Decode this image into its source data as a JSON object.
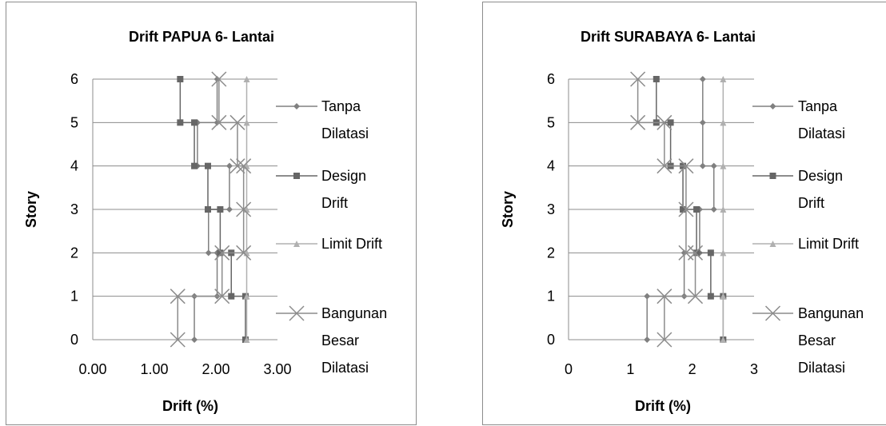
{
  "chart_data": [
    {
      "type": "line",
      "title": "Drift PAPUA 6- Lantai",
      "xlabel": "Drift (%)",
      "ylabel": "Story",
      "xlim": [
        0,
        3
      ],
      "ylim": [
        0,
        6
      ],
      "x_ticks": [
        "0.00",
        "1.00",
        "2.00",
        "3.00"
      ],
      "y_ticks": [
        "0",
        "1",
        "2",
        "3",
        "4",
        "5",
        "6"
      ],
      "grid": "horizontal",
      "legend_position": "right",
      "series": [
        {
          "name": "Tanpa Dilatasi",
          "color": "#808080",
          "marker": "diamond",
          "points": [
            [
              1.65,
              0
            ],
            [
              1.65,
              1
            ],
            [
              2.02,
              1
            ],
            [
              2.02,
              2
            ],
            [
              1.88,
              2
            ],
            [
              1.88,
              3
            ],
            [
              2.22,
              3
            ],
            [
              2.22,
              4
            ],
            [
              1.7,
              4
            ],
            [
              1.7,
              5
            ],
            [
              2.02,
              5
            ],
            [
              2.02,
              6
            ]
          ]
        },
        {
          "name": "Design Drift",
          "color": "#666666",
          "marker": "square",
          "points": [
            [
              2.48,
              0
            ],
            [
              2.48,
              1
            ],
            [
              2.25,
              1
            ],
            [
              2.25,
              2
            ],
            [
              2.07,
              2
            ],
            [
              2.07,
              3
            ],
            [
              1.87,
              3
            ],
            [
              1.87,
              4
            ],
            [
              1.65,
              4
            ],
            [
              1.65,
              5
            ],
            [
              1.42,
              5
            ],
            [
              1.42,
              6
            ]
          ]
        },
        {
          "name": "Limit Drift",
          "color": "#b0b0b0",
          "marker": "triangle",
          "points": [
            [
              2.5,
              0
            ],
            [
              2.5,
              1
            ],
            [
              2.5,
              2
            ],
            [
              2.5,
              3
            ],
            [
              2.5,
              4
            ],
            [
              2.5,
              5
            ],
            [
              2.5,
              6
            ]
          ]
        },
        {
          "name": "Bangunan Besar Dilatasi",
          "color": "#8c8c8c",
          "marker": "x",
          "points": [
            [
              1.38,
              0
            ],
            [
              1.38,
              1
            ],
            [
              2.1,
              1
            ],
            [
              2.1,
              2
            ],
            [
              2.45,
              2
            ],
            [
              2.45,
              3
            ],
            [
              2.45,
              4
            ],
            [
              2.35,
              4
            ],
            [
              2.35,
              5
            ],
            [
              2.05,
              5
            ],
            [
              2.05,
              6
            ]
          ]
        }
      ]
    },
    {
      "type": "line",
      "title": "Drift SURABAYA 6- Lantai",
      "xlabel": "Drift (%)",
      "ylabel": "Story",
      "xlim": [
        0,
        3
      ],
      "ylim": [
        0,
        6
      ],
      "x_ticks": [
        "0",
        "1",
        "2",
        "3"
      ],
      "y_ticks": [
        "0",
        "1",
        "2",
        "3",
        "4",
        "5",
        "6"
      ],
      "grid": "horizontal",
      "legend_position": "right",
      "series": [
        {
          "name": "Tanpa Dilatasi",
          "color": "#808080",
          "marker": "diamond",
          "points": [
            [
              1.27,
              0
            ],
            [
              1.27,
              1
            ],
            [
              1.87,
              1
            ],
            [
              1.87,
              2
            ],
            [
              2.12,
              2
            ],
            [
              2.12,
              3
            ],
            [
              2.35,
              3
            ],
            [
              2.35,
              4
            ],
            [
              2.17,
              4
            ],
            [
              2.17,
              5
            ],
            [
              2.17,
              6
            ]
          ]
        },
        {
          "name": "Design Drift",
          "color": "#666666",
          "marker": "square",
          "points": [
            [
              2.5,
              0
            ],
            [
              2.5,
              1
            ],
            [
              2.3,
              1
            ],
            [
              2.3,
              2
            ],
            [
              2.07,
              2
            ],
            [
              2.07,
              3
            ],
            [
              1.85,
              3
            ],
            [
              1.85,
              4
            ],
            [
              1.65,
              4
            ],
            [
              1.65,
              5
            ],
            [
              1.42,
              5
            ],
            [
              1.42,
              6
            ]
          ]
        },
        {
          "name": "Limit Drift",
          "color": "#b0b0b0",
          "marker": "triangle",
          "points": [
            [
              2.5,
              0
            ],
            [
              2.5,
              1
            ],
            [
              2.5,
              2
            ],
            [
              2.5,
              3
            ],
            [
              2.5,
              4
            ],
            [
              2.5,
              5
            ],
            [
              2.5,
              6
            ]
          ]
        },
        {
          "name": "Bangunan Besar Dilatasi",
          "color": "#8c8c8c",
          "marker": "x",
          "points": [
            [
              1.55,
              0
            ],
            [
              1.55,
              1
            ],
            [
              2.05,
              1
            ],
            [
              2.05,
              2
            ],
            [
              1.9,
              2
            ],
            [
              1.9,
              3
            ],
            [
              1.9,
              4
            ],
            [
              1.55,
              4
            ],
            [
              1.55,
              5
            ],
            [
              1.12,
              5
            ],
            [
              1.12,
              6
            ]
          ]
        }
      ]
    }
  ],
  "legend": {
    "left": [
      [
        "Tanpa",
        "Dilatasi"
      ],
      [
        "Design",
        "Drift"
      ],
      [
        "Limit Drift"
      ],
      [
        "Bangunan",
        "Besar",
        "Dilatasi"
      ]
    ],
    "right": [
      [
        "Tanpa",
        "Dilatasi"
      ],
      [
        "Design",
        "Drift"
      ],
      [
        "Limit Drift"
      ],
      [
        "Bangunan",
        "Besar",
        "Dilatasi"
      ]
    ]
  }
}
